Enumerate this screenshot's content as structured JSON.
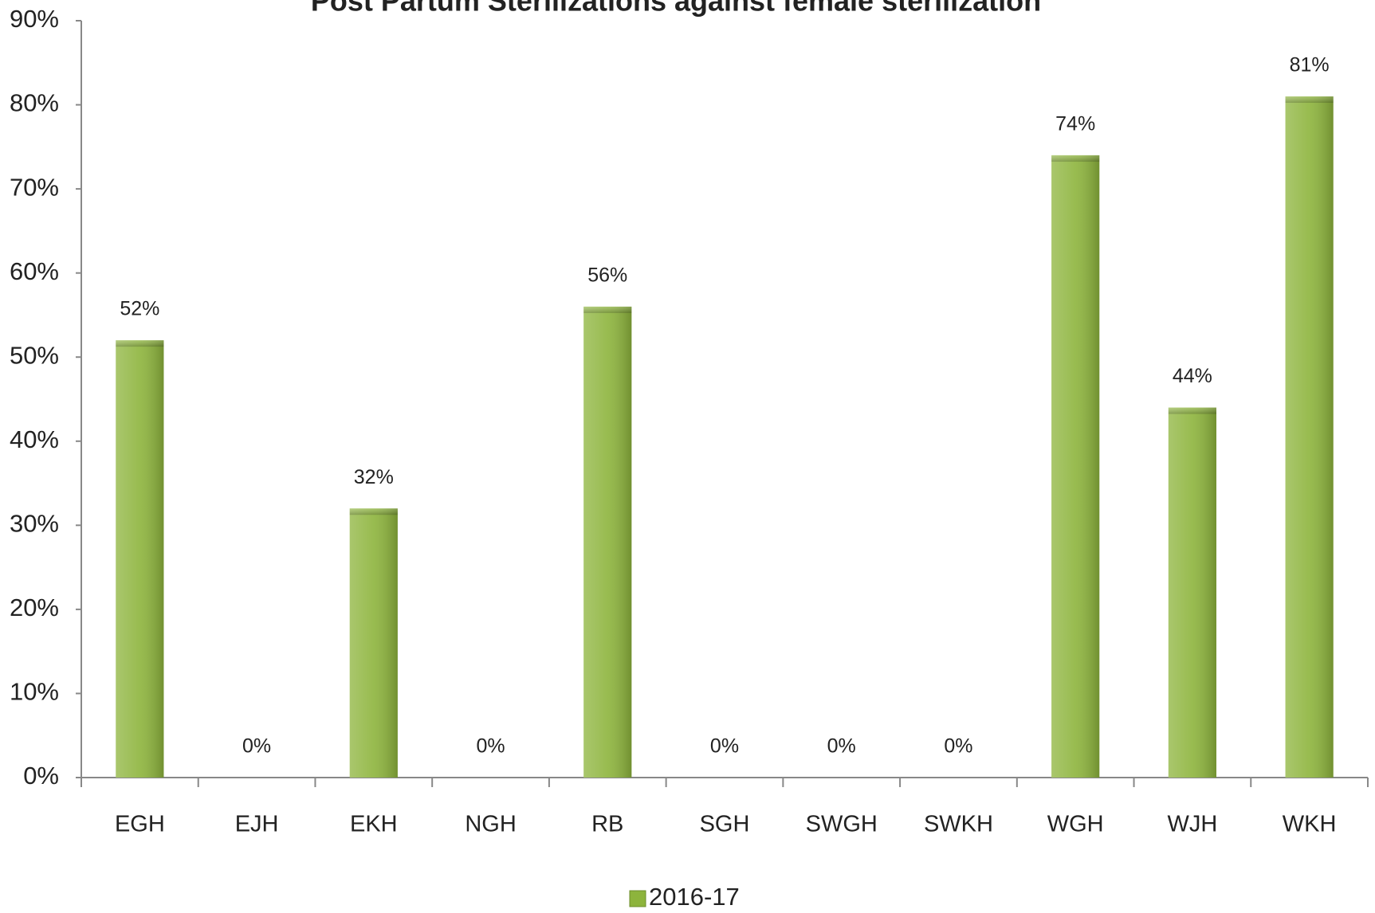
{
  "chart_data": {
    "type": "bar",
    "title": "Post Partum Sterilizations against female sterilization",
    "categories": [
      "EGH",
      "EJH",
      "EKH",
      "NGH",
      "RB",
      "SGH",
      "SWGH",
      "SWKH",
      "WGH",
      "WJH",
      "WKH"
    ],
    "series": [
      {
        "name": "2016-17",
        "color": "#8db43c",
        "values": [
          52,
          0,
          32,
          0,
          56,
          0,
          0,
          0,
          74,
          44,
          81
        ],
        "value_labels": [
          "52%",
          "0%",
          "32%",
          "0%",
          "56%",
          "0%",
          "0%",
          "0%",
          "74%",
          "44%",
          "81%"
        ]
      }
    ],
    "ylim": [
      0,
      90
    ],
    "yticks": [
      {
        "value": 0,
        "label": "0%"
      },
      {
        "value": 10,
        "label": "10%"
      },
      {
        "value": 20,
        "label": "20%"
      },
      {
        "value": 30,
        "label": "30%"
      },
      {
        "value": 40,
        "label": "40%"
      },
      {
        "value": 50,
        "label": "50%"
      },
      {
        "value": 60,
        "label": "60%"
      },
      {
        "value": 70,
        "label": "70%"
      },
      {
        "value": 80,
        "label": "80%"
      },
      {
        "value": 90,
        "label": "90%"
      }
    ],
    "grid": false,
    "legend": "bottom"
  }
}
